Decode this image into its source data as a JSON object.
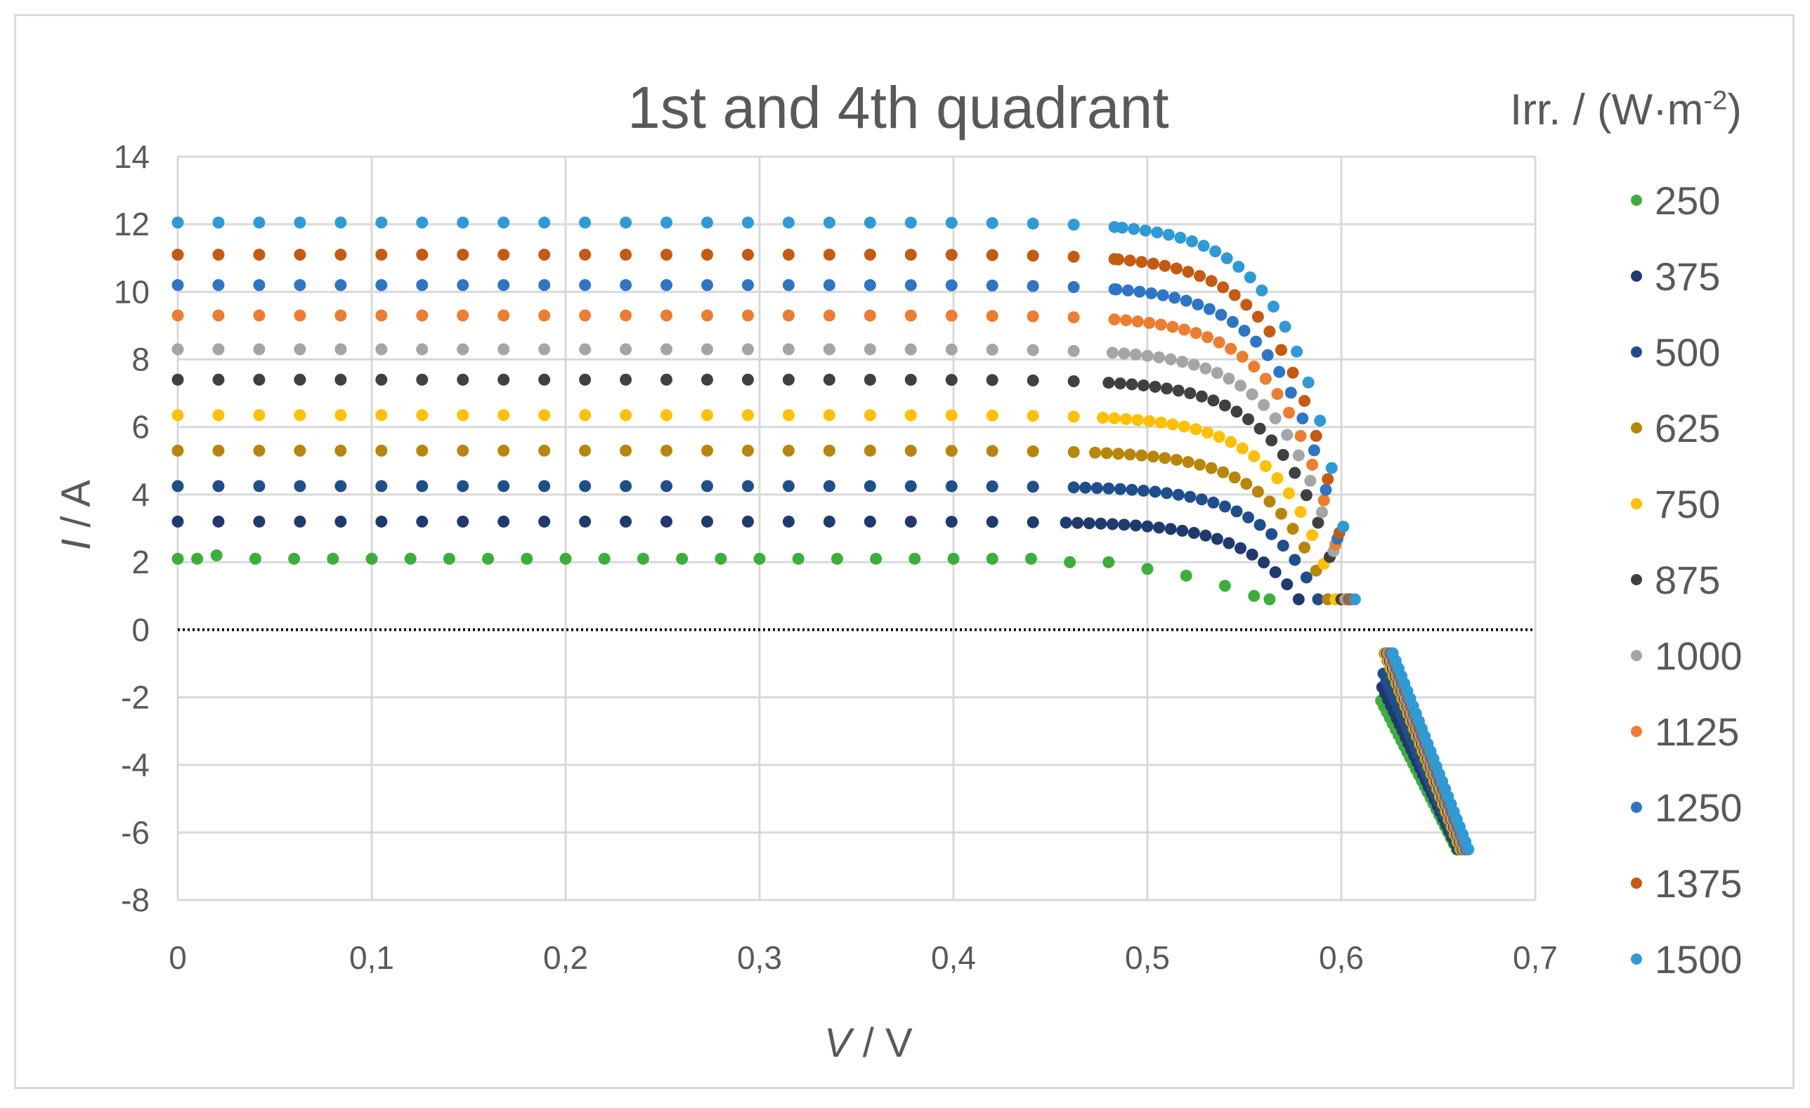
{
  "chart_data": {
    "type": "scatter",
    "title": "1st and 4th quadrant",
    "xlabel": {
      "symbol": "V",
      "unit": " / V"
    },
    "ylabel": {
      "symbol": "I",
      "unit": " / A"
    },
    "legend_title": "Irr. / (W·m",
    "legend_title_sup": "-2",
    "legend_title_tail": ")",
    "legend_position": "right",
    "grid": true,
    "xlim": [
      0,
      0.7
    ],
    "ylim": [
      -8,
      14
    ],
    "x_ticks": [
      "0",
      "0,1",
      "0,2",
      "0,3",
      "0,4",
      "0,5",
      "0,6",
      "0,7"
    ],
    "y_ticks": [
      "14",
      "12",
      "10",
      "8",
      "6",
      "4",
      "2",
      "0",
      "-2",
      "-4",
      "-6",
      "-8"
    ],
    "zero_line": "dotted",
    "series": [
      {
        "name": "250",
        "color": "#3cae3c",
        "isc": 2.1,
        "voc": 0.563,
        "knee": 0.47,
        "end_current": 0.9,
        "x": [
          0.0,
          0.01,
          0.02,
          0.04,
          0.06,
          0.08,
          0.1,
          0.12,
          0.14,
          0.16,
          0.18,
          0.2,
          0.22,
          0.24,
          0.26,
          0.28,
          0.3,
          0.32,
          0.34,
          0.36,
          0.38,
          0.4,
          0.42,
          0.44,
          0.46,
          0.48,
          0.5,
          0.52,
          0.54,
          0.555,
          0.563
        ],
        "y": [
          2.1,
          2.1,
          2.2,
          2.1,
          2.1,
          2.1,
          2.1,
          2.1,
          2.1,
          2.1,
          2.1,
          2.1,
          2.1,
          2.1,
          2.1,
          2.1,
          2.1,
          2.1,
          2.1,
          2.1,
          2.1,
          2.1,
          2.1,
          2.1,
          2.0,
          2.0,
          1.8,
          1.6,
          1.3,
          1.0,
          0.9
        ]
      },
      {
        "name": "375",
        "color": "#1f3a6e",
        "isc": 3.2,
        "voc": 0.578
      },
      {
        "name": "500",
        "color": "#1f4e8c",
        "isc": 4.25,
        "voc": 0.588
      },
      {
        "name": "625",
        "color": "#b8860b",
        "isc": 5.3,
        "voc": 0.593
      },
      {
        "name": "750",
        "color": "#ffc000",
        "isc": 6.35,
        "voc": 0.597
      },
      {
        "name": "875",
        "color": "#404040",
        "isc": 7.4,
        "voc": 0.6
      },
      {
        "name": "1000",
        "color": "#a5a5a5",
        "isc": 8.3,
        "voc": 0.602
      },
      {
        "name": "1125",
        "color": "#ed7d31",
        "isc": 9.3,
        "voc": 0.603
      },
      {
        "name": "1250",
        "color": "#2e75c6",
        "isc": 10.2,
        "voc": 0.604
      },
      {
        "name": "1375",
        "color": "#c55a11",
        "isc": 11.1,
        "voc": 0.605
      },
      {
        "name": "1500",
        "color": "#2e9bd6",
        "isc": 12.05,
        "voc": 0.607
      }
    ],
    "fourth_quadrant": {
      "x_range": [
        0.622,
        0.664
      ],
      "y_range": [
        -0.7,
        -6.5
      ]
    }
  }
}
